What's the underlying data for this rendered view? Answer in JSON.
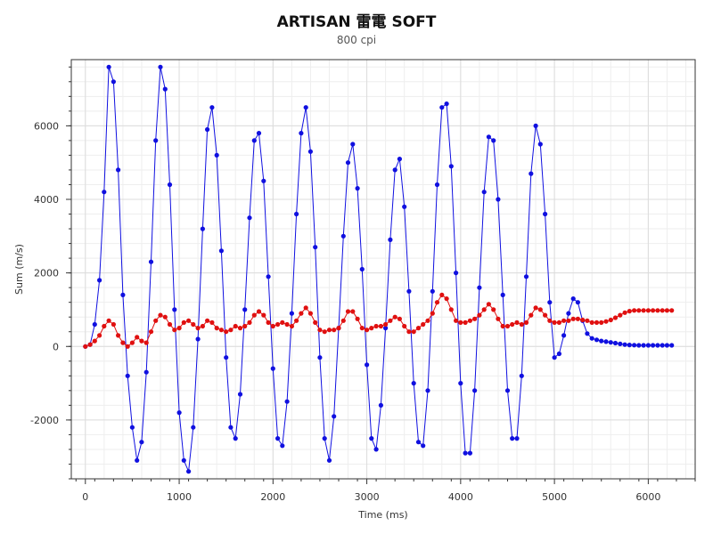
{
  "chart_data": {
    "type": "scatter",
    "title": "ARTISAN 雷電 SOFT",
    "subtitle": "800 cpi",
    "xlabel": "Time (ms)",
    "ylabel": "Sum (m/s)",
    "xlim": [
      -150,
      6500
    ],
    "ylim": [
      -3600,
      7800
    ],
    "x_ticks": [
      "0",
      "1000",
      "2000",
      "3000",
      "4000",
      "5000",
      "6000"
    ],
    "y_ticks": [
      "-2000",
      "0",
      "2000",
      "4000",
      "6000"
    ],
    "grid": true,
    "series": [
      {
        "color": "#1010e0",
        "points": [
          [
            0,
            0
          ],
          [
            50,
            50
          ],
          [
            100,
            600
          ],
          [
            150,
            1800
          ],
          [
            200,
            4200
          ],
          [
            250,
            7600
          ],
          [
            300,
            7200
          ],
          [
            350,
            4800
          ],
          [
            400,
            1400
          ],
          [
            450,
            -800
          ],
          [
            500,
            -2200
          ],
          [
            550,
            -3100
          ],
          [
            600,
            -2600
          ],
          [
            650,
            -700
          ],
          [
            700,
            2300
          ],
          [
            750,
            5600
          ],
          [
            800,
            7600
          ],
          [
            850,
            7000
          ],
          [
            900,
            4400
          ],
          [
            950,
            1000
          ],
          [
            1000,
            -1800
          ],
          [
            1050,
            -3100
          ],
          [
            1100,
            -3400
          ],
          [
            1150,
            -2200
          ],
          [
            1200,
            200
          ],
          [
            1250,
            3200
          ],
          [
            1300,
            5900
          ],
          [
            1350,
            6500
          ],
          [
            1400,
            5200
          ],
          [
            1450,
            2600
          ],
          [
            1500,
            -300
          ],
          [
            1550,
            -2200
          ],
          [
            1600,
            -2500
          ],
          [
            1650,
            -1300
          ],
          [
            1700,
            1000
          ],
          [
            1750,
            3500
          ],
          [
            1800,
            5600
          ],
          [
            1850,
            5800
          ],
          [
            1900,
            4500
          ],
          [
            1950,
            1900
          ],
          [
            2000,
            -600
          ],
          [
            2050,
            -2500
          ],
          [
            2100,
            -2700
          ],
          [
            2150,
            -1500
          ],
          [
            2200,
            900
          ],
          [
            2250,
            3600
          ],
          [
            2300,
            5800
          ],
          [
            2350,
            6500
          ],
          [
            2400,
            5300
          ],
          [
            2450,
            2700
          ],
          [
            2500,
            -300
          ],
          [
            2550,
            -2500
          ],
          [
            2600,
            -3100
          ],
          [
            2650,
            -1900
          ],
          [
            2700,
            500
          ],
          [
            2750,
            3000
          ],
          [
            2800,
            5000
          ],
          [
            2850,
            5500
          ],
          [
            2900,
            4300
          ],
          [
            2950,
            2100
          ],
          [
            3000,
            -500
          ],
          [
            3050,
            -2500
          ],
          [
            3100,
            -2800
          ],
          [
            3150,
            -1600
          ],
          [
            3200,
            500
          ],
          [
            3250,
            2900
          ],
          [
            3300,
            4800
          ],
          [
            3350,
            5100
          ],
          [
            3400,
            3800
          ],
          [
            3450,
            1500
          ],
          [
            3500,
            -1000
          ],
          [
            3550,
            -2600
          ],
          [
            3600,
            -2700
          ],
          [
            3650,
            -1200
          ],
          [
            3700,
            1500
          ],
          [
            3750,
            4400
          ],
          [
            3800,
            6500
          ],
          [
            3850,
            6600
          ],
          [
            3900,
            4900
          ],
          [
            3950,
            2000
          ],
          [
            4000,
            -1000
          ],
          [
            4050,
            -2900
          ],
          [
            4100,
            -2900
          ],
          [
            4150,
            -1200
          ],
          [
            4200,
            1600
          ],
          [
            4250,
            4200
          ],
          [
            4300,
            5700
          ],
          [
            4350,
            5600
          ],
          [
            4400,
            4000
          ],
          [
            4450,
            1400
          ],
          [
            4500,
            -1200
          ],
          [
            4550,
            -2500
          ],
          [
            4600,
            -2500
          ],
          [
            4650,
            -800
          ],
          [
            4700,
            1900
          ],
          [
            4750,
            4700
          ],
          [
            4800,
            6000
          ],
          [
            4850,
            5500
          ],
          [
            4900,
            3600
          ],
          [
            4950,
            1200
          ],
          [
            5000,
            -300
          ],
          [
            5050,
            -200
          ],
          [
            5100,
            300
          ],
          [
            5150,
            900
          ],
          [
            5200,
            1300
          ],
          [
            5250,
            1200
          ],
          [
            5300,
            700
          ],
          [
            5350,
            350
          ],
          [
            5400,
            220
          ],
          [
            5450,
            180
          ],
          [
            5500,
            150
          ],
          [
            5550,
            130
          ],
          [
            5600,
            110
          ],
          [
            5650,
            90
          ],
          [
            5700,
            70
          ],
          [
            5750,
            50
          ],
          [
            5800,
            40
          ],
          [
            5850,
            35
          ],
          [
            5900,
            30
          ],
          [
            5950,
            30
          ],
          [
            6000,
            30
          ],
          [
            6050,
            30
          ],
          [
            6100,
            30
          ],
          [
            6150,
            30
          ],
          [
            6200,
            30
          ],
          [
            6250,
            30
          ]
        ]
      },
      {
        "color": "#e01010",
        "points": [
          [
            0,
            0
          ],
          [
            50,
            50
          ],
          [
            100,
            150
          ],
          [
            150,
            300
          ],
          [
            200,
            550
          ],
          [
            250,
            700
          ],
          [
            300,
            600
          ],
          [
            350,
            300
          ],
          [
            400,
            100
          ],
          [
            450,
            0
          ],
          [
            500,
            100
          ],
          [
            550,
            250
          ],
          [
            600,
            150
          ],
          [
            650,
            100
          ],
          [
            700,
            400
          ],
          [
            750,
            700
          ],
          [
            800,
            850
          ],
          [
            850,
            800
          ],
          [
            900,
            600
          ],
          [
            950,
            450
          ],
          [
            1000,
            500
          ],
          [
            1050,
            650
          ],
          [
            1100,
            700
          ],
          [
            1150,
            600
          ],
          [
            1200,
            500
          ],
          [
            1250,
            550
          ],
          [
            1300,
            700
          ],
          [
            1350,
            650
          ],
          [
            1400,
            500
          ],
          [
            1450,
            450
          ],
          [
            1500,
            400
          ],
          [
            1550,
            450
          ],
          [
            1600,
            550
          ],
          [
            1650,
            500
          ],
          [
            1700,
            550
          ],
          [
            1750,
            650
          ],
          [
            1800,
            850
          ],
          [
            1850,
            950
          ],
          [
            1900,
            850
          ],
          [
            1950,
            650
          ],
          [
            2000,
            550
          ],
          [
            2050,
            600
          ],
          [
            2100,
            650
          ],
          [
            2150,
            600
          ],
          [
            2200,
            550
          ],
          [
            2250,
            700
          ],
          [
            2300,
            900
          ],
          [
            2350,
            1050
          ],
          [
            2400,
            900
          ],
          [
            2450,
            650
          ],
          [
            2500,
            450
          ],
          [
            2550,
            400
          ],
          [
            2600,
            450
          ],
          [
            2650,
            450
          ],
          [
            2700,
            500
          ],
          [
            2750,
            700
          ],
          [
            2800,
            950
          ],
          [
            2850,
            950
          ],
          [
            2900,
            750
          ],
          [
            2950,
            500
          ],
          [
            3000,
            450
          ],
          [
            3050,
            500
          ],
          [
            3100,
            550
          ],
          [
            3150,
            550
          ],
          [
            3200,
            600
          ],
          [
            3250,
            700
          ],
          [
            3300,
            800
          ],
          [
            3350,
            750
          ],
          [
            3400,
            550
          ],
          [
            3450,
            400
          ],
          [
            3500,
            400
          ],
          [
            3550,
            500
          ],
          [
            3600,
            600
          ],
          [
            3650,
            700
          ],
          [
            3700,
            900
          ],
          [
            3750,
            1200
          ],
          [
            3800,
            1400
          ],
          [
            3850,
            1300
          ],
          [
            3900,
            1000
          ],
          [
            3950,
            700
          ],
          [
            4000,
            650
          ],
          [
            4050,
            650
          ],
          [
            4100,
            700
          ],
          [
            4150,
            750
          ],
          [
            4200,
            850
          ],
          [
            4250,
            1000
          ],
          [
            4300,
            1150
          ],
          [
            4350,
            1000
          ],
          [
            4400,
            750
          ],
          [
            4450,
            550
          ],
          [
            4500,
            550
          ],
          [
            4550,
            600
          ],
          [
            4600,
            650
          ],
          [
            4650,
            600
          ],
          [
            4700,
            650
          ],
          [
            4750,
            850
          ],
          [
            4800,
            1050
          ],
          [
            4850,
            1000
          ],
          [
            4900,
            850
          ],
          [
            4950,
            700
          ],
          [
            5000,
            650
          ],
          [
            5050,
            650
          ],
          [
            5100,
            700
          ],
          [
            5150,
            700
          ],
          [
            5200,
            750
          ],
          [
            5250,
            750
          ],
          [
            5300,
            720
          ],
          [
            5350,
            700
          ],
          [
            5400,
            650
          ],
          [
            5450,
            650
          ],
          [
            5500,
            650
          ],
          [
            5550,
            680
          ],
          [
            5600,
            720
          ],
          [
            5650,
            780
          ],
          [
            5700,
            850
          ],
          [
            5750,
            920
          ],
          [
            5800,
            960
          ],
          [
            5850,
            980
          ],
          [
            5900,
            980
          ],
          [
            5950,
            980
          ],
          [
            6000,
            980
          ],
          [
            6050,
            980
          ],
          [
            6100,
            980
          ],
          [
            6150,
            980
          ],
          [
            6200,
            980
          ],
          [
            6250,
            980
          ]
        ]
      }
    ]
  }
}
